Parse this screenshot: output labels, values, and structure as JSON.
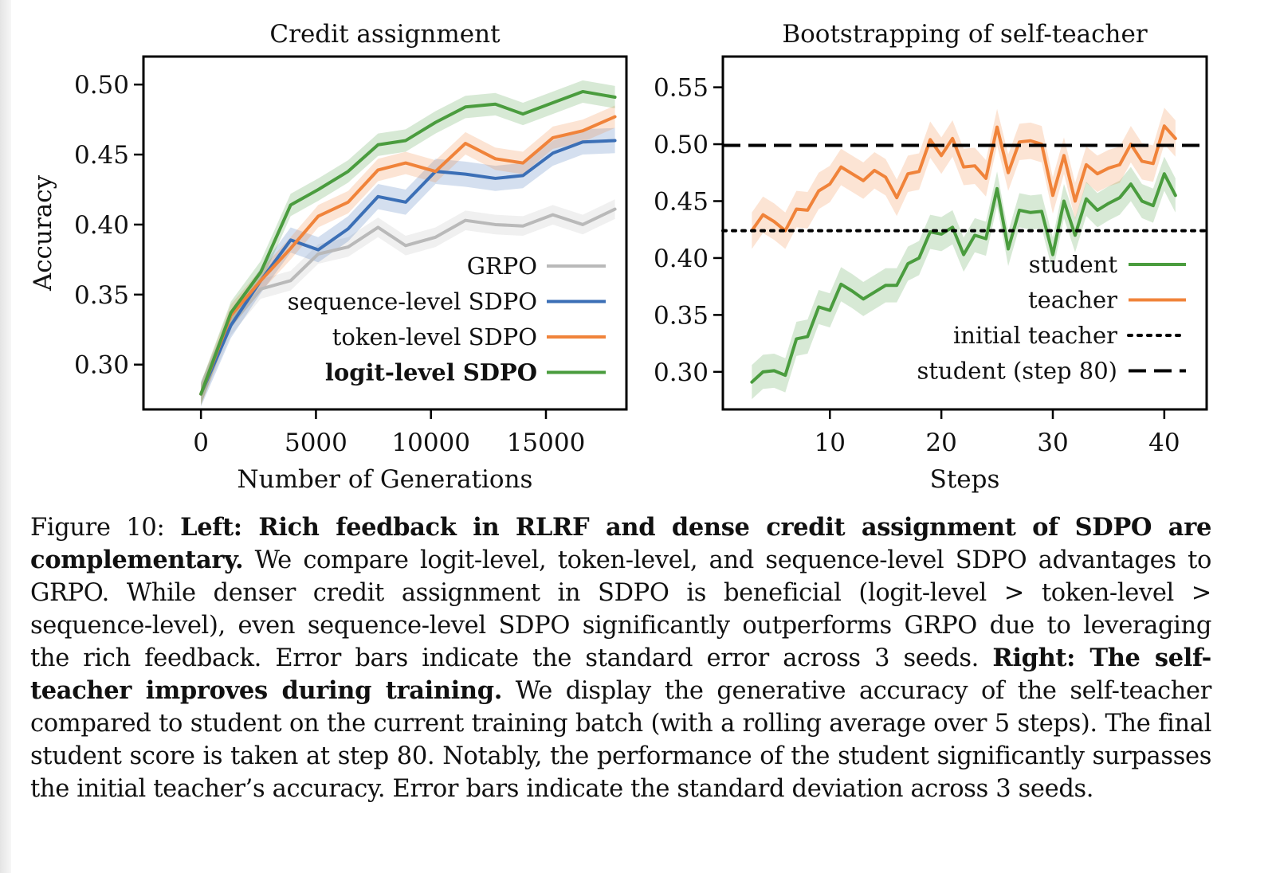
{
  "chart_data": [
    {
      "type": "line",
      "title": "Credit assignment",
      "xlabel": "Number of Generations",
      "ylabel": "Accuracy",
      "xlim": [
        -2500,
        18500
      ],
      "ylim": [
        0.268,
        0.52
      ],
      "xticks": [
        0,
        5000,
        10000,
        15000
      ],
      "xtick_labels": [
        "0",
        "5000",
        "10000",
        "15000"
      ],
      "yticks": [
        0.3,
        0.35,
        0.4,
        0.45,
        0.5
      ],
      "ytick_labels": [
        "0.30",
        "0.35",
        "0.40",
        "0.45",
        "0.50"
      ],
      "x": [
        0,
        1300,
        2600,
        3900,
        5100,
        6400,
        7700,
        8900,
        10200,
        11500,
        12800,
        14000,
        15300,
        16600,
        18000
      ],
      "series": [
        {
          "name": "GRPO",
          "color": "#b9b9b9",
          "err": 0.007,
          "values": [
            0.279,
            0.328,
            0.354,
            0.36,
            0.379,
            0.384,
            0.398,
            0.385,
            0.391,
            0.403,
            0.4,
            0.399,
            0.407,
            0.4,
            0.411
          ]
        },
        {
          "name": "sequence-level SDPO",
          "color": "#3b6fb6",
          "err": 0.009,
          "values": [
            0.279,
            0.328,
            0.36,
            0.389,
            0.382,
            0.397,
            0.42,
            0.416,
            0.438,
            0.436,
            0.433,
            0.435,
            0.451,
            0.459,
            0.46
          ]
        },
        {
          "name": "token-level SDPO",
          "color": "#f0833a",
          "err": 0.008,
          "values": [
            0.279,
            0.335,
            0.36,
            0.383,
            0.406,
            0.416,
            0.439,
            0.444,
            0.438,
            0.458,
            0.447,
            0.444,
            0.462,
            0.467,
            0.477
          ]
        },
        {
          "name": "logit-level SDPO",
          "color": "#4a9c3e",
          "err": 0.008,
          "bold": true,
          "values": [
            0.279,
            0.337,
            0.366,
            0.414,
            0.425,
            0.438,
            0.457,
            0.46,
            0.473,
            0.484,
            0.486,
            0.479,
            0.487,
            0.495,
            0.491
          ]
        }
      ],
      "legend": "lower-right"
    },
    {
      "type": "line",
      "title": "Bootstrapping of self-teacher",
      "xlabel": "Steps",
      "ylabel": "",
      "xlim": [
        0.4,
        43.8
      ],
      "ylim": [
        0.267,
        0.577
      ],
      "xticks": [
        10,
        20,
        30,
        40
      ],
      "xtick_labels": [
        "10",
        "20",
        "30",
        "40"
      ],
      "yticks": [
        0.3,
        0.35,
        0.4,
        0.45,
        0.5,
        0.55
      ],
      "ytick_labels": [
        "0.30",
        "0.35",
        "0.40",
        "0.45",
        "0.50",
        "0.55"
      ],
      "x": [
        3,
        4,
        5,
        6,
        7,
        8,
        9,
        10,
        11,
        12,
        13,
        14,
        15,
        16,
        17,
        18,
        19,
        20,
        21,
        22,
        23,
        24,
        25,
        26,
        27,
        28,
        29,
        30,
        31,
        32,
        33,
        34,
        35,
        36,
        37,
        38,
        39,
        40,
        41
      ],
      "series": [
        {
          "name": "student",
          "color": "#4a9c3e",
          "err": 0.015,
          "values": [
            0.291,
            0.3,
            0.301,
            0.297,
            0.329,
            0.331,
            0.357,
            0.354,
            0.377,
            0.371,
            0.364,
            0.37,
            0.376,
            0.376,
            0.395,
            0.4,
            0.423,
            0.421,
            0.427,
            0.403,
            0.42,
            0.417,
            0.461,
            0.408,
            0.442,
            0.44,
            0.441,
            0.403,
            0.45,
            0.42,
            0.452,
            0.442,
            0.448,
            0.453,
            0.465,
            0.45,
            0.446,
            0.474,
            0.455
          ]
        },
        {
          "name": "teacher",
          "color": "#f0833a",
          "err": 0.016,
          "values": [
            0.424,
            0.438,
            0.432,
            0.424,
            0.443,
            0.442,
            0.459,
            0.465,
            0.48,
            0.474,
            0.468,
            0.477,
            0.471,
            0.453,
            0.474,
            0.476,
            0.504,
            0.49,
            0.505,
            0.48,
            0.481,
            0.47,
            0.515,
            0.475,
            0.502,
            0.503,
            0.5,
            0.455,
            0.49,
            0.45,
            0.482,
            0.474,
            0.479,
            0.482,
            0.5,
            0.485,
            0.483,
            0.516,
            0.505
          ]
        },
        {
          "name": "initial teacher",
          "color": "#000000",
          "style": "dotted",
          "constant": 0.424
        },
        {
          "name": "student (step 80)",
          "color": "#000000",
          "style": "dashed",
          "constant": 0.499
        }
      ],
      "legend": "lower-right"
    }
  ],
  "caption": {
    "label": "Figure 10: ",
    "bold1": "Left: Rich feedback in RLRF and dense credit assignment of SDPO are complementary.",
    "text1": " We compare logit-level, token-level, and sequence-level SDPO advantages to GRPO. While denser credit assignment in SDPO is beneficial (logit-level > token-level > sequence-level), even sequence-level SDPO significantly outperforms GRPO due to leveraging the rich feedback. Error bars indicate the standard error across 3 seeds. ",
    "bold2": "Right: The self-teacher improves during training.",
    "text2": " We display the generative accuracy of the self-teacher compared to student on the current training batch (with a rolling average over 5 steps). The final student score is taken at step 80. Notably, the performance of the student significantly surpasses the initial teacher’s accuracy. Error bars indicate the standard deviation across 3 seeds."
  }
}
